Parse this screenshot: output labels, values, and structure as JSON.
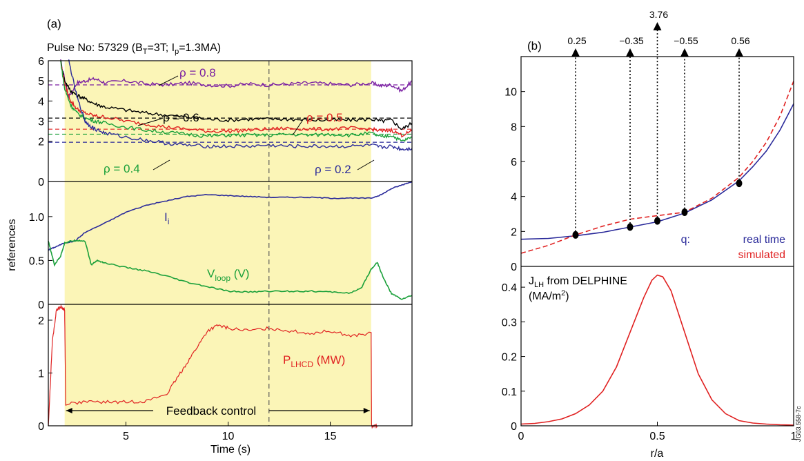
{
  "panel_a": {
    "label": "(a)",
    "title_main": "Pulse No: 57329 (B",
    "title_sub1": "T",
    "title_mid": "=3T; I",
    "title_sub2": "p",
    "title_end": "=1.3MA)",
    "ylabel": "references",
    "xlabel": "Time (s)",
    "feedback_label": "Feedback control",
    "x_ticks": [
      "5",
      "10",
      "15"
    ],
    "top_y_ticks": [
      "6",
      "5",
      "4",
      "3",
      "2",
      "0"
    ],
    "mid_y_ticks": [
      "1.0",
      "0.5",
      "0"
    ],
    "bot_y_ticks": [
      "2",
      "1",
      "0"
    ],
    "li_label_main": "I",
    "li_label_sub": "i",
    "vloop_main": "V",
    "vloop_sub": "loop",
    "vloop_unit": " (V)",
    "plhcd_main": "P",
    "plhcd_sub": "LHCD",
    "plhcd_unit": " (MW)",
    "rho_labels": [
      "ρ = 0.8",
      "ρ = 0.6",
      "ρ = 0.5",
      "ρ = 0.4",
      "ρ = 0.2"
    ]
  },
  "panel_b": {
    "label": "(b)",
    "xlabel": "r/a",
    "q_label": "q:",
    "legend_real": "real time",
    "legend_sim": "simulated",
    "j_title_main": "J",
    "j_title_sub": "LH",
    "j_title_rest": " from DELPHINE",
    "j_unit_main": "(MA/m",
    "j_unit_sup": "2",
    "j_unit_end": ")",
    "x_ticks": [
      "0",
      "0.5",
      "1"
    ],
    "top_y_ticks": [
      "10",
      "8",
      "6",
      "4",
      "2",
      "0"
    ],
    "bot_y_ticks": [
      "0.4",
      "0.3",
      "0.2",
      "0.1",
      "0"
    ],
    "arrow_labels": [
      "0.25",
      "−0.35",
      "3.76",
      "−0.55",
      "0.56"
    ],
    "figure_id": "JG03.558-7c"
  },
  "chart_data": [
    {
      "type": "line",
      "panel": "a-top",
      "xlim": [
        1.2,
        19
      ],
      "ylim": [
        0,
        6
      ],
      "shaded_x": [
        2,
        17
      ],
      "dashed_vline_x": 12,
      "references": [
        {
          "name": "ρ = 0.8",
          "color": "#7a1fa2",
          "value": 4.8
        },
        {
          "name": "ρ = 0.6",
          "color": "#000000",
          "value": 3.15
        },
        {
          "name": "ρ = 0.5",
          "color": "#e02020",
          "value": 2.6
        },
        {
          "name": "ρ = 0.4",
          "color": "#1aa03a",
          "value": 2.35
        },
        {
          "name": "ρ = 0.2",
          "color": "#2a2a9a",
          "value": 1.95
        }
      ],
      "series": [
        {
          "name": "ρ = 0.8",
          "color": "#7a1fa2",
          "x": [
            1.8,
            2.2,
            2.6,
            3,
            3.5,
            4,
            5,
            6,
            7,
            8,
            9,
            10,
            11,
            12,
            13,
            14,
            15,
            16,
            17,
            17.5,
            18,
            18.5,
            19
          ],
          "y": [
            6,
            4.2,
            4.9,
            5,
            5.1,
            4.9,
            5,
            4.85,
            4.8,
            4.9,
            4.8,
            4.75,
            4.85,
            4.8,
            4.85,
            4.9,
            4.85,
            4.8,
            4.9,
            4.75,
            4.8,
            4.5,
            5
          ]
        },
        {
          "name": "ρ = 0.6",
          "color": "#000000",
          "x": [
            1.8,
            2,
            2.3,
            2.6,
            3,
            3.5,
            4,
            5,
            6,
            7,
            8,
            9,
            10,
            11,
            12,
            13,
            14,
            15,
            16,
            17,
            17.5,
            18,
            18.5,
            19
          ],
          "y": [
            6,
            5,
            4.5,
            4.3,
            4.1,
            3.85,
            3.7,
            3.55,
            3.4,
            3.3,
            3.2,
            3.1,
            3.05,
            3.1,
            3.1,
            3.1,
            3.05,
            3.05,
            3.05,
            3.1,
            3.0,
            3.05,
            2.6,
            2.9
          ]
        },
        {
          "name": "ρ = 0.5",
          "color": "#e02020",
          "x": [
            1.8,
            2,
            2.3,
            2.6,
            3,
            3.5,
            4,
            5,
            6,
            7,
            8,
            9,
            10,
            11,
            12,
            13,
            14,
            15,
            16,
            17,
            17.5,
            18,
            18.5,
            19
          ],
          "y": [
            6,
            4.8,
            4.0,
            3.6,
            3.4,
            3.25,
            3.2,
            3.0,
            2.85,
            2.7,
            2.6,
            2.5,
            2.5,
            2.55,
            2.6,
            2.65,
            2.6,
            2.6,
            2.65,
            2.6,
            2.5,
            2.55,
            2.3,
            2.5
          ]
        },
        {
          "name": "ρ = 0.4",
          "color": "#1aa03a",
          "x": [
            1.8,
            2,
            2.3,
            2.6,
            3,
            3.5,
            4,
            5,
            6,
            7,
            8,
            9,
            10,
            11,
            12,
            13,
            14,
            15,
            16,
            17,
            17.5,
            18,
            18.5,
            19
          ],
          "y": [
            6,
            4.6,
            3.8,
            3.4,
            3.15,
            3.0,
            2.9,
            2.7,
            2.55,
            2.45,
            2.35,
            2.25,
            2.3,
            2.3,
            2.3,
            2.35,
            2.3,
            2.35,
            2.3,
            2.4,
            2.2,
            2.3,
            2.0,
            2.2
          ]
        },
        {
          "name": "ρ = 0.2",
          "color": "#2a2a9a",
          "x": [
            2.2,
            2.6,
            3,
            3.2,
            3.5,
            4,
            5,
            6,
            7,
            8,
            9,
            10,
            11,
            12,
            13,
            14,
            15,
            16,
            17,
            17.5,
            18,
            18.5,
            19
          ],
          "y": [
            6,
            4.2,
            3.0,
            2.8,
            2.6,
            2.4,
            2.2,
            2.05,
            1.9,
            1.8,
            1.75,
            1.75,
            1.75,
            1.8,
            1.75,
            1.75,
            1.75,
            1.75,
            1.8,
            1.7,
            1.75,
            1.6,
            1.65
          ]
        }
      ]
    },
    {
      "type": "line",
      "panel": "a-middle",
      "xlim": [
        1.2,
        19
      ],
      "ylim": [
        0,
        1.4
      ],
      "series": [
        {
          "name": "I_i",
          "color": "#2a2a9a",
          "x": [
            1.2,
            1.5,
            2,
            2.5,
            3,
            4,
            5,
            6,
            7,
            8,
            9,
            10,
            11,
            12,
            13,
            14,
            15,
            16,
            17,
            17.5,
            18,
            18.5,
            19
          ],
          "y": [
            0.62,
            0.65,
            0.7,
            0.72,
            0.82,
            0.93,
            1.05,
            1.13,
            1.18,
            1.23,
            1.25,
            1.24,
            1.23,
            1.22,
            1.22,
            1.22,
            1.21,
            1.21,
            1.21,
            1.25,
            1.32,
            1.36,
            1.4
          ]
        },
        {
          "name": "V_loop",
          "color": "#1aa03a",
          "x": [
            1.2,
            1.5,
            1.8,
            2,
            2.3,
            2.6,
            3,
            3.3,
            3.6,
            4,
            5,
            6,
            7,
            8,
            9,
            10,
            11,
            12,
            13,
            14,
            15,
            16,
            16.5,
            17,
            17.3,
            17.6,
            18,
            18.5,
            19
          ],
          "y": [
            0.72,
            0.45,
            0.55,
            0.7,
            0.72,
            0.73,
            0.72,
            0.45,
            0.5,
            0.47,
            0.42,
            0.38,
            0.32,
            0.25,
            0.2,
            0.15,
            0.14,
            0.15,
            0.15,
            0.15,
            0.14,
            0.13,
            0.18,
            0.4,
            0.48,
            0.3,
            0.12,
            0.06,
            0.1
          ]
        }
      ]
    },
    {
      "type": "line",
      "panel": "a-bottom",
      "xlim": [
        1.2,
        19
      ],
      "ylim": [
        0,
        2.3
      ],
      "series": [
        {
          "name": "P_LHCD",
          "color": "#e02020",
          "x": [
            1.2,
            1.4,
            1.6,
            1.8,
            2,
            2.05,
            3,
            4,
            5,
            6,
            7,
            7.5,
            8,
            8.5,
            9,
            9.5,
            10,
            11,
            12,
            13,
            14,
            15,
            16,
            17,
            17.02,
            17.3
          ],
          "y": [
            0,
            1.6,
            2.2,
            2.25,
            2.2,
            0.42,
            0.45,
            0.45,
            0.45,
            0.47,
            0.6,
            0.9,
            1.2,
            1.5,
            1.8,
            1.9,
            1.85,
            1.8,
            1.85,
            1.8,
            1.75,
            1.8,
            1.7,
            1.75,
            0.0,
            0.0
          ]
        }
      ]
    },
    {
      "type": "line",
      "panel": "b-top",
      "xlabel": "r/a",
      "xlim": [
        0,
        1
      ],
      "ylim": [
        0,
        12
      ],
      "series": [
        {
          "name": "real time",
          "color": "#2a2a9a",
          "x": [
            0,
            0.1,
            0.2,
            0.3,
            0.4,
            0.5,
            0.6,
            0.7,
            0.8,
            0.85,
            0.9,
            0.95,
            1
          ],
          "y": [
            1.55,
            1.6,
            1.75,
            1.95,
            2.25,
            2.55,
            3.05,
            3.8,
            4.9,
            5.7,
            6.6,
            7.8,
            9.3
          ]
        },
        {
          "name": "simulated",
          "color": "#e02020",
          "x": [
            0,
            0.1,
            0.2,
            0.3,
            0.4,
            0.5,
            0.6,
            0.7,
            0.8,
            0.85,
            0.9,
            0.95,
            1
          ],
          "y": [
            0.75,
            1.2,
            1.8,
            2.3,
            2.7,
            2.9,
            3.1,
            3.9,
            5.1,
            6.0,
            7.1,
            8.6,
            10.6
          ]
        }
      ],
      "markers": {
        "x": [
          0.2,
          0.4,
          0.5,
          0.6,
          0.8
        ],
        "y": [
          1.8,
          2.25,
          2.6,
          3.1,
          4.75
        ],
        "arrow_values": [
          0.25,
          -0.35,
          3.76,
          -0.55,
          0.56
        ]
      }
    },
    {
      "type": "line",
      "panel": "b-bottom",
      "xlabel": "r/a",
      "xlim": [
        0,
        1
      ],
      "ylim": [
        0,
        0.46
      ],
      "series": [
        {
          "name": "J_LH",
          "color": "#e02020",
          "x": [
            0,
            0.05,
            0.1,
            0.15,
            0.2,
            0.25,
            0.3,
            0.35,
            0.4,
            0.45,
            0.48,
            0.5,
            0.52,
            0.55,
            0.6,
            0.65,
            0.7,
            0.75,
            0.8,
            0.85,
            0.9,
            0.95,
            1
          ],
          "y": [
            0.005,
            0.007,
            0.012,
            0.02,
            0.035,
            0.06,
            0.1,
            0.17,
            0.27,
            0.37,
            0.42,
            0.435,
            0.43,
            0.39,
            0.27,
            0.15,
            0.075,
            0.035,
            0.015,
            0.008,
            0.005,
            0.003,
            0.002
          ]
        }
      ]
    }
  ]
}
